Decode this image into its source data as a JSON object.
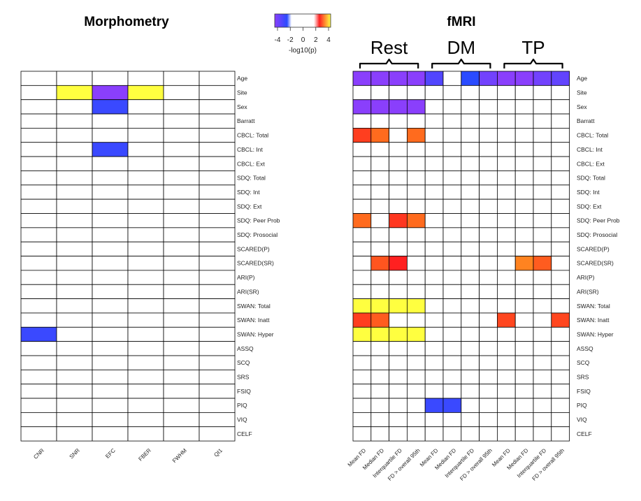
{
  "chart_data": [
    {
      "type": "heatmap",
      "title": "Morphometry",
      "columns": [
        "CNR",
        "SNR",
        "EFC",
        "FBER",
        "FWHM",
        "QI1"
      ],
      "rows": [
        "Age",
        "Site",
        "Sex",
        "Barratt",
        "CBCL: Total",
        "CBCL: Int",
        "CBCL: Ext",
        "SDQ: Total",
        "SDQ: Int",
        "SDQ: Ext",
        "SDQ: Peer Prob",
        "SDQ: Prosocial",
        "SCARED(P)",
        "SCARED(SR)",
        "ARI(P)",
        "ARI(SR)",
        "SWAN: Total",
        "SWAN: Inatt",
        "SWAN: Hyper",
        "ASSQ",
        "SCQ",
        "SRS",
        "FSIQ",
        "PIQ",
        "VIQ",
        "CELF"
      ],
      "values": [
        [
          0,
          0,
          0,
          0,
          0,
          0
        ],
        [
          0,
          4,
          -3.5,
          4,
          0,
          0
        ],
        [
          0,
          0,
          -2.5,
          0,
          0,
          0
        ],
        [
          0,
          0,
          0,
          0,
          0,
          0
        ],
        [
          0,
          0,
          0,
          0,
          0,
          0
        ],
        [
          0,
          0,
          -2.5,
          0,
          0,
          0
        ],
        [
          0,
          0,
          0,
          0,
          0,
          0
        ],
        [
          0,
          0,
          0,
          0,
          0,
          0
        ],
        [
          0,
          0,
          0,
          0,
          0,
          0
        ],
        [
          0,
          0,
          0,
          0,
          0,
          0
        ],
        [
          0,
          0,
          0,
          0,
          0,
          0
        ],
        [
          0,
          0,
          0,
          0,
          0,
          0
        ],
        [
          0,
          0,
          0,
          0,
          0,
          0
        ],
        [
          0,
          0,
          0,
          0,
          0,
          0
        ],
        [
          0,
          0,
          0,
          0,
          0,
          0
        ],
        [
          0,
          0,
          0,
          0,
          0,
          0
        ],
        [
          0,
          0,
          0,
          0,
          0,
          0
        ],
        [
          0,
          0,
          0,
          0,
          0,
          0
        ],
        [
          -2.5,
          0,
          0,
          0,
          0,
          0
        ],
        [
          0,
          0,
          0,
          0,
          0,
          0
        ],
        [
          0,
          0,
          0,
          0,
          0,
          0
        ],
        [
          0,
          0,
          0,
          0,
          0,
          0
        ],
        [
          0,
          0,
          0,
          0,
          0,
          0
        ],
        [
          0,
          0,
          0,
          0,
          0,
          0
        ],
        [
          0,
          0,
          0,
          0,
          0,
          0
        ],
        [
          0,
          0,
          0,
          0,
          0,
          0
        ]
      ]
    },
    {
      "type": "heatmap",
      "title": "fMRI",
      "groups": [
        {
          "label": "Rest",
          "start": 0,
          "count": 4
        },
        {
          "label": "DM",
          "start": 4,
          "count": 4
        },
        {
          "label": "TP",
          "start": 8,
          "count": 4
        }
      ],
      "columns": [
        "Mean FD",
        "Median FD",
        "Interquartile FD",
        "FD > overall 95th",
        "Mean FD",
        "Median FD",
        "Interquartile FD",
        "FD > overall 95th",
        "Mean FD",
        "Median FD",
        "Interquartile FD",
        "FD > overall 95th"
      ],
      "rows": [
        "Age",
        "Site",
        "Sex",
        "Barratt",
        "CBCL: Total",
        "CBCL: Int",
        "CBCL: Ext",
        "SDQ: Total",
        "SDQ: Int",
        "SDQ: Ext",
        "SDQ: Peer Prob",
        "SDQ: Prosocial",
        "SCARED(P)",
        "SCARED(SR)",
        "ARI(P)",
        "ARI(SR)",
        "SWAN: Total",
        "SWAN: Inatt",
        "SWAN: Hyper",
        "ASSQ",
        "SCQ",
        "SRS",
        "FSIQ",
        "PIQ",
        "VIQ",
        "CELF"
      ],
      "values": [
        [
          -3.5,
          -3.5,
          -3.5,
          -3.5,
          -2.8,
          0,
          -2.3,
          -3.2,
          -3.5,
          -3.5,
          -3.2,
          -3.0
        ],
        [
          0,
          0,
          0,
          0,
          0,
          0,
          0,
          0,
          0,
          0,
          0,
          0
        ],
        [
          -3.5,
          -3.5,
          -3.5,
          -3.5,
          0,
          0,
          0,
          0,
          0,
          0,
          0,
          0
        ],
        [
          0,
          0,
          0,
          0,
          0,
          0,
          0,
          0,
          0,
          0,
          0,
          0
        ],
        [
          1.7,
          2.3,
          0,
          2.3,
          0,
          0,
          0,
          0,
          0,
          0,
          0,
          0
        ],
        [
          0,
          0,
          0,
          0,
          0,
          0,
          0,
          0,
          0,
          0,
          0,
          0
        ],
        [
          0,
          0,
          0,
          0,
          0,
          0,
          0,
          0,
          0,
          0,
          0,
          0
        ],
        [
          0,
          0,
          0,
          0,
          0,
          0,
          0,
          0,
          0,
          0,
          0,
          0
        ],
        [
          0,
          0,
          0,
          0,
          0,
          0,
          0,
          0,
          0,
          0,
          0,
          0
        ],
        [
          0,
          0,
          0,
          0,
          0,
          0,
          0,
          0,
          0,
          0,
          0,
          0
        ],
        [
          2.3,
          0,
          1.6,
          2.3,
          0,
          0,
          0,
          0,
          0,
          0,
          0,
          0
        ],
        [
          0,
          0,
          0,
          0,
          0,
          0,
          0,
          0,
          0,
          0,
          0,
          0
        ],
        [
          0,
          0,
          0,
          0,
          0,
          0,
          0,
          0,
          0,
          0,
          0,
          0
        ],
        [
          0,
          2.0,
          1.3,
          0,
          0,
          0,
          0,
          0,
          0,
          2.6,
          2.1,
          0
        ],
        [
          0,
          0,
          0,
          0,
          0,
          0,
          0,
          0,
          0,
          0,
          0,
          0
        ],
        [
          0,
          0,
          0,
          0,
          0,
          0,
          0,
          0,
          0,
          0,
          0,
          0
        ],
        [
          4,
          4,
          4,
          4,
          0,
          0,
          0,
          0,
          0,
          0,
          0,
          0
        ],
        [
          1.7,
          2.1,
          0,
          0,
          0,
          0,
          0,
          0,
          1.8,
          0,
          0,
          1.8
        ],
        [
          4,
          4,
          4,
          4,
          0,
          0,
          0,
          0,
          0,
          0,
          0,
          0
        ],
        [
          0,
          0,
          0,
          0,
          0,
          0,
          0,
          0,
          0,
          0,
          0,
          0
        ],
        [
          0,
          0,
          0,
          0,
          0,
          0,
          0,
          0,
          0,
          0,
          0,
          0
        ],
        [
          0,
          0,
          0,
          0,
          0,
          0,
          0,
          0,
          0,
          0,
          0,
          0
        ],
        [
          0,
          0,
          0,
          0,
          0,
          0,
          0,
          0,
          0,
          0,
          0,
          0
        ],
        [
          0,
          0,
          0,
          0,
          -2.5,
          -2.5,
          0,
          0,
          0,
          0,
          0,
          0
        ],
        [
          0,
          0,
          0,
          0,
          0,
          0,
          0,
          0,
          0,
          0,
          0,
          0
        ],
        [
          0,
          0,
          0,
          0,
          0,
          0,
          0,
          0,
          0,
          0,
          0,
          0
        ]
      ]
    }
  ],
  "legend": {
    "label": "-log10(p)",
    "ticks": [
      "-4",
      "-2",
      "0",
      "2",
      "4"
    ],
    "range": [
      -4,
      4
    ],
    "stops": [
      "#8a3ffc",
      "#2a4bff",
      "#ffffff",
      "#ff2020",
      "#ffff40"
    ]
  }
}
